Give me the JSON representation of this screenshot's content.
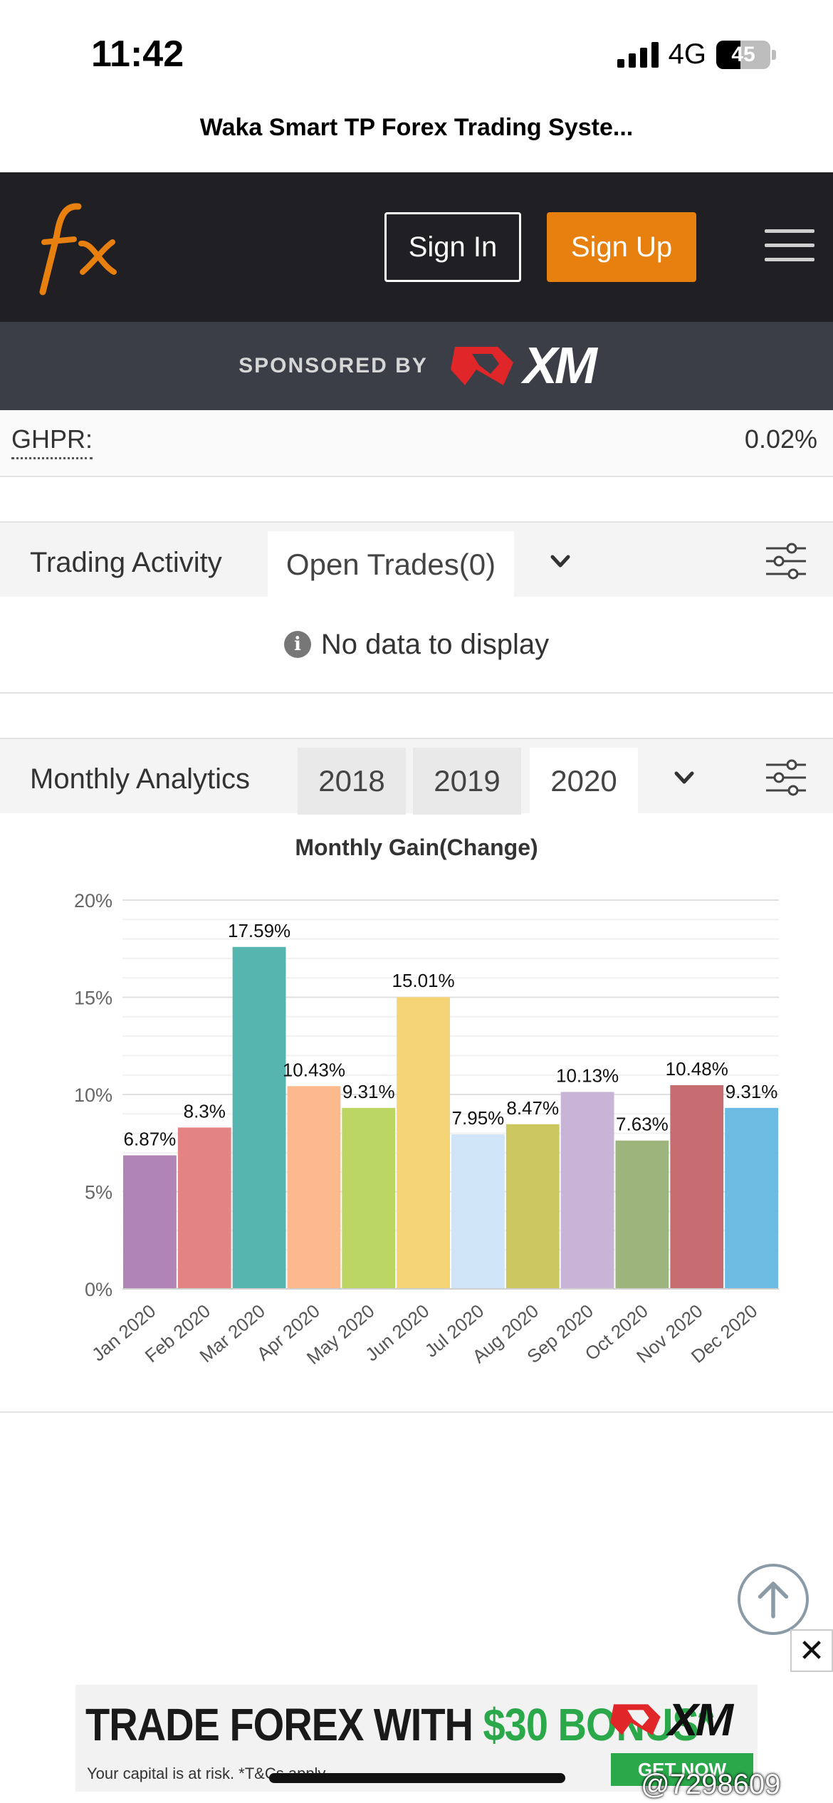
{
  "status_bar": {
    "time": "11:42",
    "network": "4G",
    "battery": "45",
    "battery_level": 0.45
  },
  "browser": {
    "page_title": "Waka Smart TP Forex Trading Syste..."
  },
  "header": {
    "signin_label": "Sign In",
    "signup_label": "Sign Up",
    "brand_color": "#e8800f"
  },
  "sponsor": {
    "label": "SPONSORED BY",
    "brand": "XM"
  },
  "stats": {
    "ghpr_label": "GHPR:",
    "ghpr_value": "0.02%"
  },
  "trading_activity": {
    "title": "Trading Activity",
    "tab_label": "Open Trades(0)",
    "empty_text": "No data to display"
  },
  "monthly_analytics": {
    "title": "Monthly Analytics",
    "tabs": [
      "2018",
      "2019",
      "2020"
    ],
    "active_tab": "2020"
  },
  "chart_data": {
    "type": "bar",
    "title": "Monthly Gain(Change)",
    "categories": [
      "Jan 2020",
      "Feb 2020",
      "Mar 2020",
      "Apr 2020",
      "May 2020",
      "Jun 2020",
      "Jul 2020",
      "Aug 2020",
      "Sep 2020",
      "Oct 2020",
      "Nov 2020",
      "Dec 2020"
    ],
    "values": [
      6.87,
      8.3,
      17.59,
      10.43,
      9.31,
      15.01,
      7.95,
      8.47,
      10.13,
      7.63,
      10.48,
      9.31
    ],
    "labels": [
      "6.87%",
      "8.3%",
      "17.59%",
      "10.43%",
      "9.31%",
      "15.01%",
      "7.95%",
      "8.47%",
      "10.13%",
      "7.63%",
      "10.48%",
      "9.31%"
    ],
    "colors": [
      "#b085b5",
      "#e38383",
      "#57b5b0",
      "#fdb98e",
      "#bcd663",
      "#f5d476",
      "#d0e6f8",
      "#cdc75f",
      "#c8b4d6",
      "#9db57d",
      "#c76c70",
      "#6bbbe2"
    ],
    "yticks": [
      "0%",
      "5%",
      "10%",
      "15%",
      "20%"
    ],
    "ylim": [
      0,
      20
    ],
    "grid": true,
    "xlabel": "",
    "ylabel": ""
  },
  "ad": {
    "headline_prefix": "TRADE FOREX WITH ",
    "headline_bonus": "$30 BONUS*",
    "disclaimer": "Your capital is at risk. *T&Cs apply",
    "brand": "XM",
    "cta": "GET NOW",
    "accent": "#2aa84a"
  },
  "watermark": "@7298609"
}
